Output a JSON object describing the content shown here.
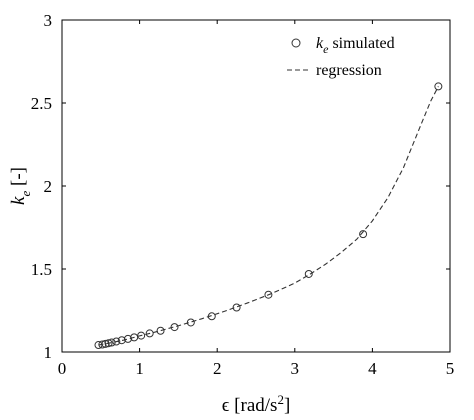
{
  "chart_data": {
    "type": "scatter",
    "title": "",
    "xlabel": "ϵ [rad/s²]",
    "ylabel": "k_e [-]",
    "xlim": [
      0,
      5
    ],
    "ylim": [
      1,
      3
    ],
    "x_ticks": [
      "0",
      "1",
      "2",
      "3",
      "4",
      "5"
    ],
    "y_ticks": [
      "1",
      "1.5",
      "2",
      "2.5",
      "3"
    ],
    "grid": false,
    "legend_position": "top-right",
    "legend": {
      "simulated": {
        "base": "k",
        "sub": "e",
        "rest": " simulated"
      },
      "regression": "regression"
    },
    "series": [
      {
        "name": "k_e simulated",
        "marker": "circle",
        "x": [
          0.47,
          0.52,
          0.56,
          0.6,
          0.64,
          0.7,
          0.77,
          0.85,
          0.93,
          1.02,
          1.13,
          1.27,
          1.45,
          1.66,
          1.93,
          2.25,
          2.66,
          3.18,
          3.88,
          4.85
        ],
        "y": [
          1.042,
          1.045,
          1.049,
          1.053,
          1.057,
          1.063,
          1.071,
          1.079,
          1.088,
          1.099,
          1.112,
          1.128,
          1.15,
          1.178,
          1.215,
          1.268,
          1.345,
          1.47,
          1.71,
          2.6
        ]
      },
      {
        "name": "regression",
        "line_style": "dashed",
        "x": [
          0.47,
          0.6,
          0.8,
          1.0,
          1.2,
          1.5,
          1.8,
          2.1,
          2.4,
          2.7,
          3.0,
          3.2,
          3.4,
          3.6,
          3.8,
          4.0,
          4.2,
          4.4,
          4.6,
          4.75,
          4.85
        ],
        "y": [
          1.042,
          1.053,
          1.072,
          1.097,
          1.12,
          1.158,
          1.2,
          1.246,
          1.297,
          1.352,
          1.415,
          1.47,
          1.53,
          1.6,
          1.68,
          1.79,
          1.93,
          2.11,
          2.34,
          2.51,
          2.6
        ]
      }
    ],
    "colors": {
      "axis": "#000000",
      "marker": "#333333",
      "line": "#333333"
    }
  }
}
